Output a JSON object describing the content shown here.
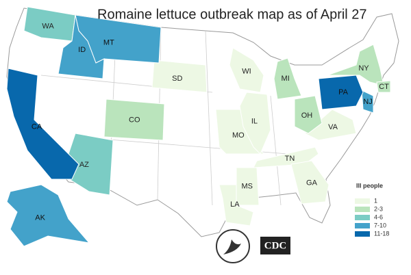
{
  "title": "Romaine lettuce outbreak map as of April 27",
  "legend": {
    "title": "Ill people",
    "items": [
      {
        "label": "1",
        "color": "#edf8e4",
        "states": [
          "SD",
          "WI",
          "MO",
          "IL",
          "TN",
          "VA",
          "MS",
          "LA",
          "GA"
        ]
      },
      {
        "label": "2-3",
        "color": "#bae4bc",
        "states": [
          "CO",
          "MI",
          "OH",
          "NY",
          "CT"
        ]
      },
      {
        "label": "4-6",
        "color": "#7bccc4",
        "states": [
          "WA",
          "AZ"
        ]
      },
      {
        "label": "7-10",
        "color": "#43a2ca",
        "states": [
          "MT",
          "ID",
          "AK",
          "NJ"
        ]
      },
      {
        "label": "11-18",
        "color": "#0868ac",
        "states": [
          "CA",
          "PA"
        ]
      }
    ]
  },
  "logos": {
    "cdc": "CDC"
  }
}
